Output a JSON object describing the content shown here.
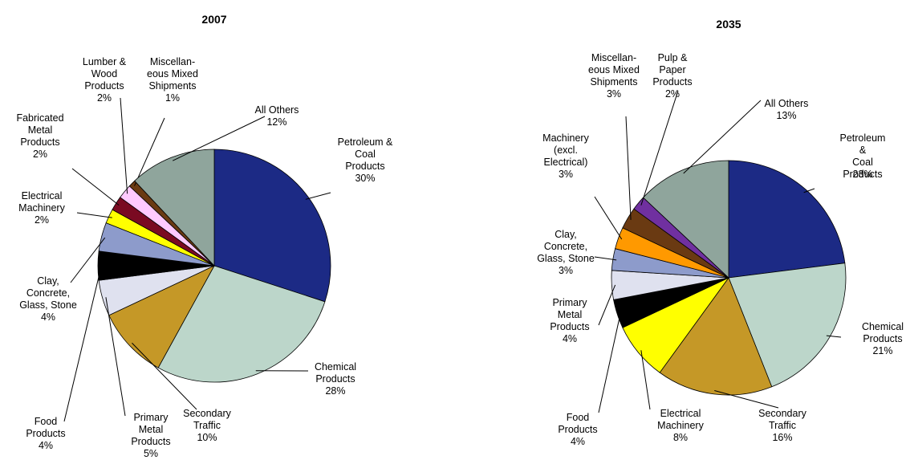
{
  "chart_data": [
    {
      "type": "pie",
      "title": "2007",
      "categories": [
        "Petroleum &\nCoal\nProducts",
        "Chemical\nProducts",
        "Secondary\nTraffic",
        "Primary\nMetal\nProducts",
        "Food\nProducts",
        "Clay,\nConcrete,\nGlass, Stone",
        "Electrical\nMachinery",
        "Fabricated\nMetal\nProducts",
        "Lumber &\nWood\nProducts",
        "Miscellan-\neous Mixed\nShipments",
        "All Others"
      ],
      "values": [
        30,
        28,
        10,
        5,
        4,
        4,
        2,
        2,
        2,
        1,
        12
      ],
      "value_labels": [
        "30%",
        "28%",
        "10%",
        "5%",
        "4%",
        "4%",
        "2%",
        "2%",
        "2%",
        "1%",
        "12%"
      ],
      "colors": [
        "#1c2a85",
        "#bcd6ca",
        "#c59827",
        "#dfe1ef",
        "#000000",
        "#8d9bcb",
        "#ffff00",
        "#7a0a22",
        "#ffcaff",
        "#6a3a12",
        "#8fa59c"
      ]
    },
    {
      "type": "pie",
      "title": "2035",
      "categories": [
        "Petroleum &\nCoal\nProducts",
        "Chemical\nProducts",
        "Secondary\nTraffic",
        "Electrical\nMachinery",
        "Food\nProducts",
        "Primary\nMetal\nProducts",
        "Clay,\nConcrete,\nGlass, Stone",
        "Machinery\n(excl.\nElectrical)",
        "Miscellan-\neous Mixed\nShipments",
        "Pulp &\nPaper\nProducts",
        "All Others"
      ],
      "values": [
        23,
        21,
        16,
        8,
        4,
        4,
        3,
        3,
        3,
        2,
        13
      ],
      "value_labels": [
        "23%",
        "21%",
        "16%",
        "8%",
        "4%",
        "4%",
        "3%",
        "3%",
        "3%",
        "2%",
        "13%"
      ],
      "colors": [
        "#1c2a85",
        "#bcd6ca",
        "#c59827",
        "#ffff00",
        "#000000",
        "#dfe1ef",
        "#8d9bcb",
        "#ff9900",
        "#6a3a12",
        "#7030a0",
        "#8fa59c"
      ]
    }
  ]
}
